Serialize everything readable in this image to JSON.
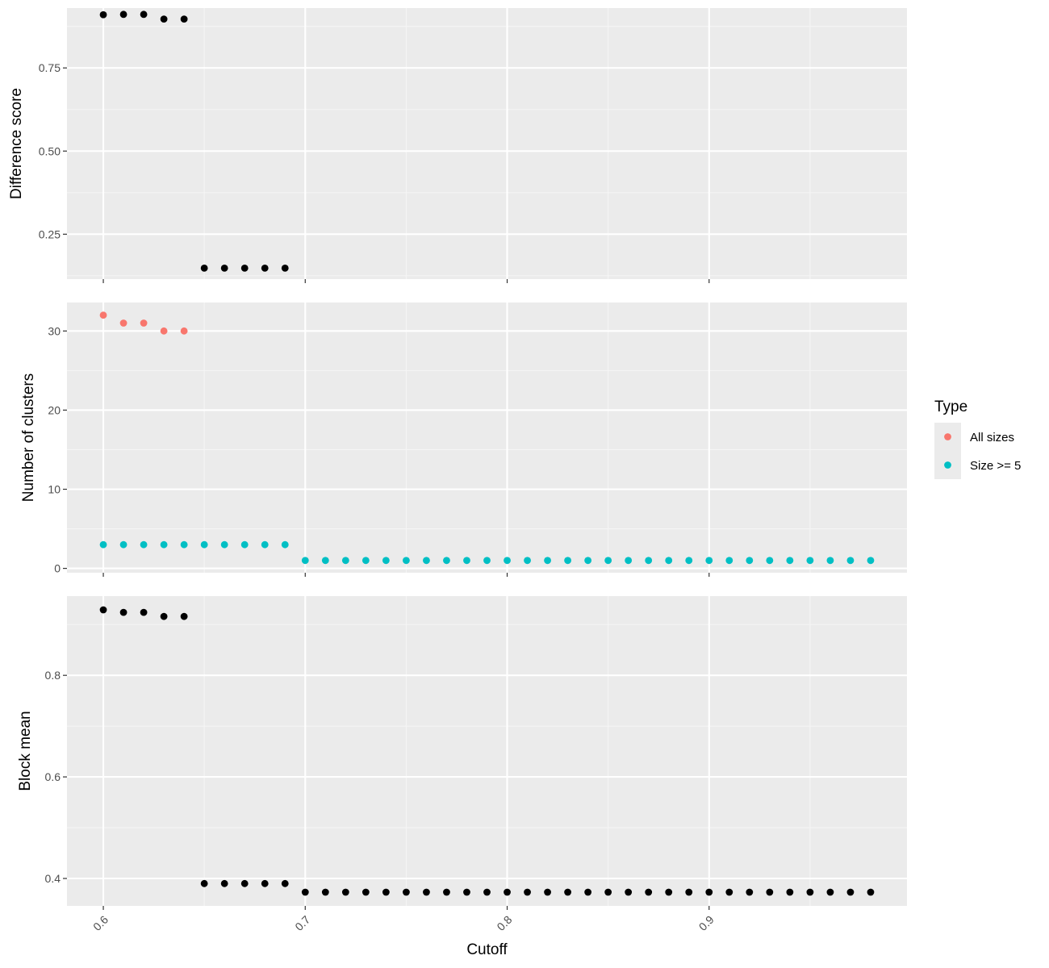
{
  "colors": {
    "panel_bg": "#EBEBEB",
    "grid_major": "#FFFFFF",
    "grid_minor": "#F5F5F5",
    "tick": "#333333",
    "black_point": "#000000",
    "all_sizes": "#F8766D",
    "size_ge_5": "#00BFC4"
  },
  "legend": {
    "title": "Type",
    "items": [
      {
        "label": "All sizes",
        "color": "#F8766D"
      },
      {
        "label": "Size >= 5",
        "color": "#00BFC4"
      }
    ]
  },
  "chart_data": [
    {
      "type": "scatter",
      "ylabel": "Difference score",
      "xlim": [
        0.582,
        0.998
      ],
      "ylim": [
        0.115,
        0.93
      ],
      "yticks": [
        0.25,
        0.5,
        0.75
      ],
      "ytick_labels": [
        "0.25",
        "0.50",
        "0.75"
      ],
      "xticks": [
        0.6,
        0.7,
        0.8,
        0.9
      ],
      "show_x_tick_labels": false,
      "grid": true,
      "series": [
        {
          "color": "#000000",
          "x": [
            0.6,
            0.61,
            0.62,
            0.63,
            0.64,
            0.65,
            0.66,
            0.67,
            0.68,
            0.69
          ],
          "y": [
            0.91,
            0.911,
            0.911,
            0.897,
            0.897,
            0.148,
            0.148,
            0.148,
            0.148,
            0.148
          ]
        }
      ]
    },
    {
      "type": "scatter",
      "ylabel": "Number of clusters",
      "xlim": [
        0.582,
        0.998
      ],
      "ylim": [
        -0.55,
        33.6
      ],
      "yticks": [
        0,
        10,
        20,
        30
      ],
      "ytick_labels": [
        "0",
        "10",
        "20",
        "30"
      ],
      "xticks": [
        0.6,
        0.7,
        0.8,
        0.9
      ],
      "show_x_tick_labels": false,
      "grid": true,
      "series": [
        {
          "name": "All sizes",
          "color": "#F8766D",
          "x": [
            0.6,
            0.61,
            0.62,
            0.63,
            0.64
          ],
          "y": [
            32,
            31,
            31,
            30,
            30
          ]
        },
        {
          "name": "Size >= 5",
          "color": "#00BFC4",
          "x": [
            0.6,
            0.61,
            0.62,
            0.63,
            0.64,
            0.65,
            0.66,
            0.67,
            0.68,
            0.69,
            0.7,
            0.71,
            0.72,
            0.73,
            0.74,
            0.75,
            0.76,
            0.77,
            0.78,
            0.79,
            0.8,
            0.81,
            0.82,
            0.83,
            0.84,
            0.85,
            0.86,
            0.87,
            0.88,
            0.89,
            0.9,
            0.91,
            0.92,
            0.93,
            0.94,
            0.95,
            0.96,
            0.97,
            0.98
          ],
          "y": [
            3,
            3,
            3,
            3,
            3,
            3,
            3,
            3,
            3,
            3,
            1,
            1,
            1,
            1,
            1,
            1,
            1,
            1,
            1,
            1,
            1,
            1,
            1,
            1,
            1,
            1,
            1,
            1,
            1,
            1,
            1,
            1,
            1,
            1,
            1,
            1,
            1,
            1,
            1
          ]
        }
      ]
    },
    {
      "type": "scatter",
      "ylabel": "Block mean",
      "xlabel": "Cutoff",
      "xlim": [
        0.582,
        0.998
      ],
      "ylim": [
        0.346,
        0.956
      ],
      "yticks": [
        0.4,
        0.6,
        0.8
      ],
      "ytick_labels": [
        "0.4",
        "0.6",
        "0.8"
      ],
      "xticks": [
        0.6,
        0.7,
        0.8,
        0.9
      ],
      "xtick_labels": [
        "0.6",
        "0.7",
        "0.8",
        "0.9"
      ],
      "show_x_tick_labels": true,
      "grid": true,
      "series": [
        {
          "color": "#000000",
          "x": [
            0.6,
            0.61,
            0.62,
            0.63,
            0.64,
            0.65,
            0.66,
            0.67,
            0.68,
            0.69,
            0.7,
            0.71,
            0.72,
            0.73,
            0.74,
            0.75,
            0.76,
            0.77,
            0.78,
            0.79,
            0.8,
            0.81,
            0.82,
            0.83,
            0.84,
            0.85,
            0.86,
            0.87,
            0.88,
            0.89,
            0.9,
            0.91,
            0.92,
            0.93,
            0.94,
            0.95,
            0.96,
            0.97,
            0.98
          ],
          "y": [
            0.929,
            0.924,
            0.924,
            0.916,
            0.916,
            0.39,
            0.39,
            0.39,
            0.39,
            0.39,
            0.373,
            0.373,
            0.373,
            0.373,
            0.373,
            0.373,
            0.373,
            0.373,
            0.373,
            0.373,
            0.373,
            0.373,
            0.373,
            0.373,
            0.373,
            0.373,
            0.373,
            0.373,
            0.373,
            0.373,
            0.373,
            0.373,
            0.373,
            0.373,
            0.373,
            0.373,
            0.373,
            0.373,
            0.373
          ]
        }
      ]
    }
  ]
}
